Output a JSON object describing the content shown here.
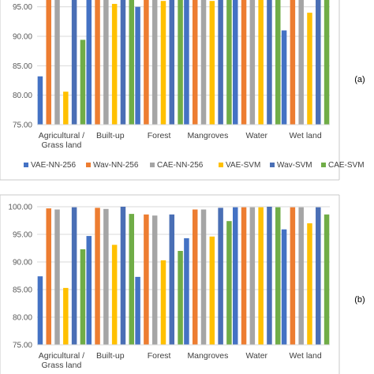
{
  "colors": {
    "VAE-NN-256": "#4472C4",
    "Wav-NN-256": "#ED7D31",
    "CAE-NN-256": "#A5A5A5",
    "VAE-SVM": "#FFC000",
    "Wav-SVM": "#4A6FB5",
    "CAE-SVM": "#70AD47"
  },
  "chart_data": [
    {
      "type": "bar",
      "panel_label": "(a)",
      "categories": [
        "Agricultural / Grass land",
        "Built-up",
        "Forest",
        "Mangroves",
        "Water",
        "Wet land"
      ],
      "ylim": [
        75,
        97.5
      ],
      "yticks": [
        "75.00",
        "80.00",
        "85.00",
        "90.00",
        "95.00"
      ],
      "grid": true,
      "legend_position": "bottom",
      "series": [
        {
          "name": "VAE-NN-256",
          "values": [
            83.2,
            97.0,
            95.0,
            97.0,
            99.9,
            91.0
          ]
        },
        {
          "name": "Wav-NN-256",
          "values": [
            99.7,
            99.8,
            99.5,
            99.5,
            99.9,
            99.9
          ]
        },
        {
          "name": "CAE-NN-256",
          "values": [
            99.5,
            99.6,
            98.5,
            99.5,
            99.9,
            99.9
          ]
        },
        {
          "name": "VAE-SVM",
          "values": [
            80.6,
            95.5,
            96.0,
            96.0,
            99.9,
            94.0
          ]
        },
        {
          "name": "Wav-SVM",
          "values": [
            99.9,
            99.9,
            98.5,
            99.8,
            99.9,
            99.9
          ]
        },
        {
          "name": "CAE-SVM",
          "values": [
            89.4,
            98.7,
            97.8,
            97.4,
            99.9,
            98.6
          ]
        }
      ]
    },
    {
      "type": "bar",
      "panel_label": "(b)",
      "categories": [
        "Agricultural / Grass land",
        "Built-up",
        "Forest",
        "Mangroves",
        "Water",
        "Wet land"
      ],
      "ylim": [
        75,
        100
      ],
      "yticks": [
        "75.00",
        "80.00",
        "85.00",
        "90.00",
        "95.00",
        "100.00"
      ],
      "grid": true,
      "legend_position": "bottom",
      "series": [
        {
          "name": "VAE-NN-256",
          "values": [
            87.4,
            94.7,
            87.3,
            94.3,
            99.9,
            95.9
          ]
        },
        {
          "name": "Wav-NN-256",
          "values": [
            99.7,
            99.8,
            98.6,
            99.5,
            99.9,
            99.9
          ]
        },
        {
          "name": "CAE-NN-256",
          "values": [
            99.5,
            99.6,
            98.4,
            99.5,
            99.9,
            99.9
          ]
        },
        {
          "name": "VAE-SVM",
          "values": [
            85.3,
            93.1,
            90.3,
            94.6,
            99.9,
            97.0
          ]
        },
        {
          "name": "Wav-SVM",
          "values": [
            99.9,
            100.0,
            98.6,
            99.8,
            100.0,
            99.9
          ]
        },
        {
          "name": "CAE-SVM",
          "values": [
            92.3,
            98.7,
            92.0,
            97.4,
            99.9,
            98.6
          ]
        }
      ]
    }
  ]
}
